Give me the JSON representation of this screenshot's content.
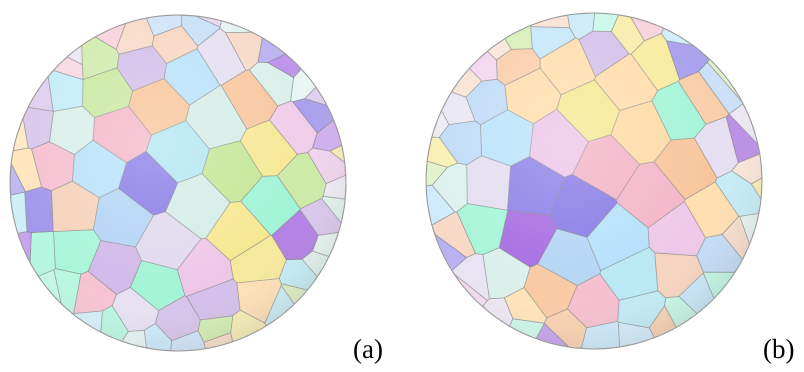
{
  "figure": {
    "panels": [
      {
        "label": "(a)"
      },
      {
        "label": "(b)"
      }
    ],
    "palette": [
      "#9fe0f0",
      "#f6b27a",
      "#7ff0c8",
      "#b4e07a",
      "#9ec8f2",
      "#8a3cd8",
      "#d9d0ea",
      "#f2c0a0",
      "#f4e070",
      "#f0a0b8",
      "#c8e8e0",
      "#6a5ae0",
      "#e8b4e0",
      "#a0d8f8",
      "#ffd08a",
      "#c0a0e0"
    ]
  }
}
